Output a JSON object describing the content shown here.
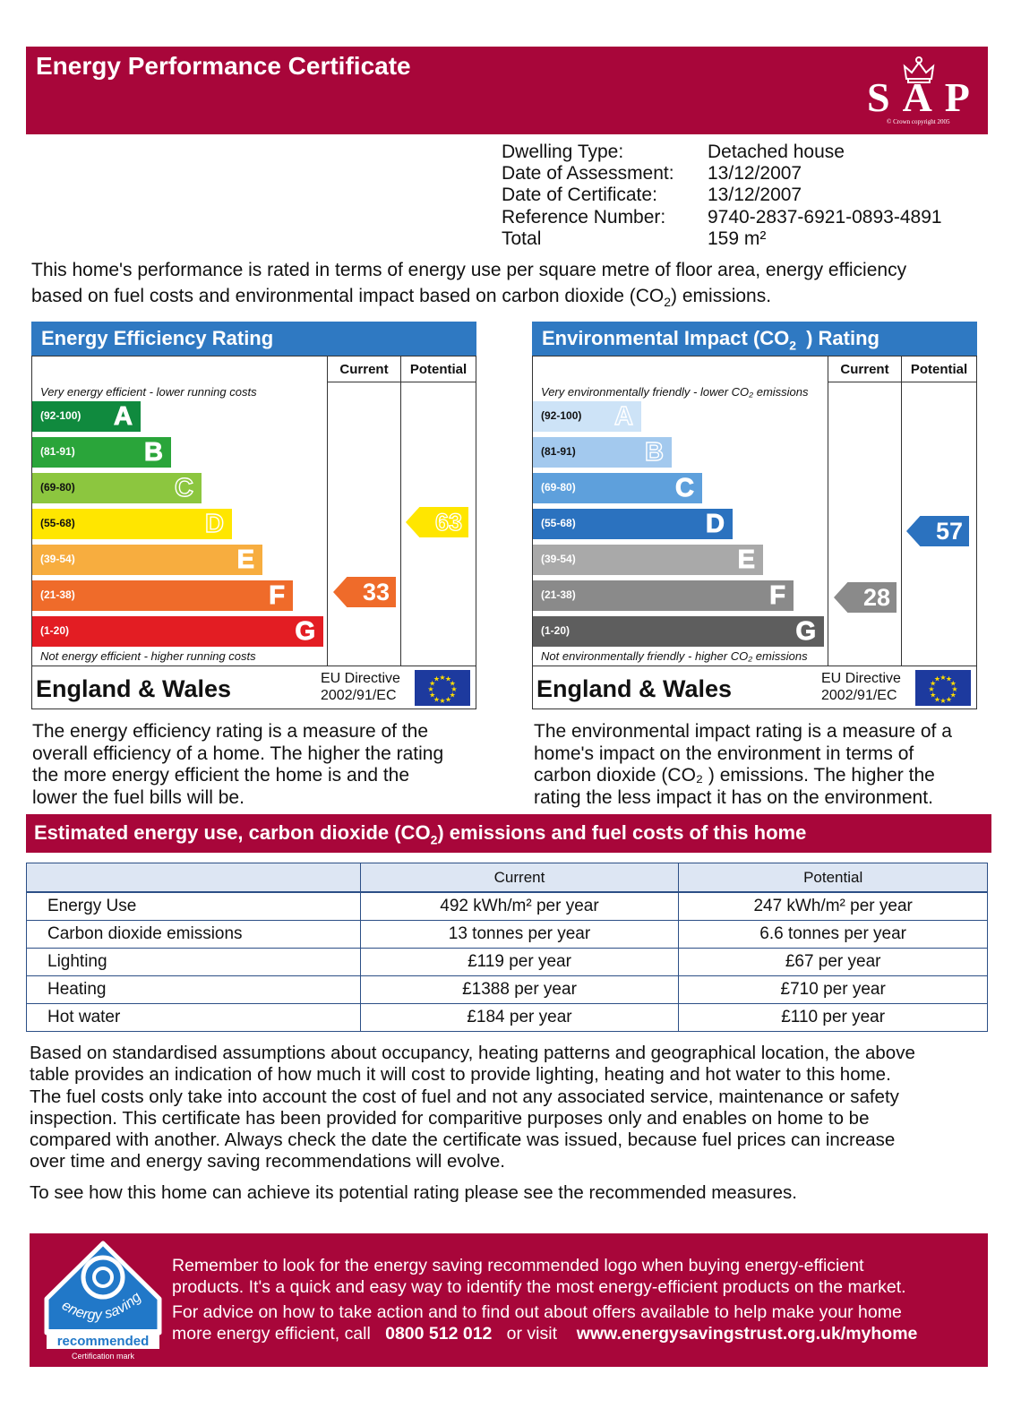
{
  "header": {
    "title": "Energy Performance Certificate",
    "sap_logo_text": "SAP",
    "sap_copyright": "© Crown copyright 2005"
  },
  "details": [
    {
      "label": "Dwelling Type:",
      "value": "Detached house"
    },
    {
      "label": "Date of Assessment:",
      "value": "13/12/2007"
    },
    {
      "label": "Date of Certificate:",
      "value": "13/12/2007"
    },
    {
      "label": "Reference Number:",
      "value": "9740-2837-6921-0893-4891"
    },
    {
      "label": "Total",
      "value": "159 m²"
    }
  ],
  "intro": {
    "line1": "This home's performance is rated in terms of energy use per square metre of floor area, energy efficiency",
    "line2a": "based on fuel costs and environmental impact based on carbon dioxide (CO",
    "line2sub": "2",
    "line2b": ") emissions."
  },
  "efficiency": {
    "title": "Energy Efficiency Rating",
    "col_current": "Current",
    "col_potential": "Potential",
    "top_note": "Very energy efficient - lower running costs",
    "bottom_note": "Not energy efficient - higher running costs",
    "bands": [
      {
        "range": "(92-100)",
        "letter": "A",
        "color": "#108a3e"
      },
      {
        "range": "(81-91)",
        "letter": "B",
        "color": "#2aa53a"
      },
      {
        "range": "(69-80)",
        "letter": "C",
        "color": "#8cc63f"
      },
      {
        "range": "(55-68)",
        "letter": "D",
        "color": "#ffe600"
      },
      {
        "range": "(39-54)",
        "letter": "E",
        "color": "#f7ad3f"
      },
      {
        "range": "(21-38)",
        "letter": "F",
        "color": "#ef6b2a"
      },
      {
        "range": "(1-20)",
        "letter": "G",
        "color": "#e31d23"
      }
    ],
    "current": {
      "value": "33",
      "color": "#ef6b2a"
    },
    "potential": {
      "value": "63",
      "color": "#ffe600"
    },
    "region": "England & Wales",
    "directive_line1": "EU Directive",
    "directive_line2": "2002/91/EC",
    "description": [
      "The energy efficiency rating is a measure of the",
      "overall efficiency of a home. The higher the rating",
      "the more energy efficient the home is and the",
      "lower the fuel bills will be."
    ]
  },
  "environment": {
    "title_a": "Environmental Impact (CO",
    "title_sub": "2",
    "title_b": ") Rating",
    "col_current": "Current",
    "col_potential": "Potential",
    "top_note": "Very environmentally friendly - lower CO₂ emissions",
    "bottom_note": "Not environmentally friendly - higher CO₂ emissions",
    "bands": [
      {
        "range": "(92-100)",
        "letter": "A",
        "color": "#cde3f7"
      },
      {
        "range": "(81-91)",
        "letter": "B",
        "color": "#a3c9ee"
      },
      {
        "range": "(69-80)",
        "letter": "C",
        "color": "#5ea0dc"
      },
      {
        "range": "(55-68)",
        "letter": "D",
        "color": "#2b72bf"
      },
      {
        "range": "(39-54)",
        "letter": "E",
        "color": "#a9a9a9"
      },
      {
        "range": "(21-38)",
        "letter": "F",
        "color": "#8a8a8a"
      },
      {
        "range": "(1-20)",
        "letter": "G",
        "color": "#5e5e5e"
      }
    ],
    "current": {
      "value": "28",
      "color": "#8a8a8a"
    },
    "potential": {
      "value": "57",
      "color": "#2b72bf"
    },
    "region": "England & Wales",
    "directive_line1": "EU Directive",
    "directive_line2": "2002/91/EC",
    "description": [
      "The environmental impact rating is a measure of a",
      "home's impact on the environment in terms of",
      "carbon dioxide (CO₂  ) emissions. The higher the",
      "rating the less impact it has on the environment."
    ]
  },
  "usage": {
    "title_a": "Estimated energy use, carbon dioxide (CO",
    "title_sub": "2",
    "title_b": ") emissions and fuel costs of this home",
    "col_current": "Current",
    "col_potential": "Potential",
    "rows": [
      {
        "label": "Energy Use",
        "current": "492 kWh/m² per year",
        "potential": "247 kWh/m² per year"
      },
      {
        "label": "Carbon dioxide emissions",
        "current": "13 tonnes per year",
        "potential": "6.6 tonnes per year"
      },
      {
        "label": "Lighting",
        "current": "£119 per year",
        "potential": "£67 per year"
      },
      {
        "label": "Heating",
        "current": "£1388 per year",
        "potential": "£710 per year"
      },
      {
        "label": "Hot water",
        "current": "£184 per year",
        "potential": "£110 per year"
      }
    ]
  },
  "disclaimer": [
    "Based on standardised assumptions about occupancy, heating patterns and geographical location, the above",
    "table provides an indication of how much it will cost to provide lighting, heating and hot water to this home.",
    "The fuel costs only take into account the cost of fuel and not any associated service, maintenance or safety",
    "inspection.  This certificate has been provided for comparitive purposes only and enables on home to be",
    "compared with another.  Always check the date the certificate was issued, because fuel prices can increase",
    "over time and energy saving recommendations will evolve."
  ],
  "recommend_line": "To see how this home can achieve its potential rating please see the recommended measures.",
  "footer": {
    "logo_arc": "energy saving",
    "logo_recommended": "recommended",
    "logo_mark": "Certification mark",
    "line1": "Remember to look for the energy saving recommended logo when buying energy-efficient",
    "line2": "products.  It's a quick and easy way to identify the most energy-efficient products on the market.",
    "line3": "For advice on how to take action and to find out about offers available to help make your home",
    "line4a": "more energy efficient, call",
    "phone": "0800 512 012",
    "line4b": "or visit",
    "url": "www.energysavingstrust.org.uk/myhome"
  }
}
